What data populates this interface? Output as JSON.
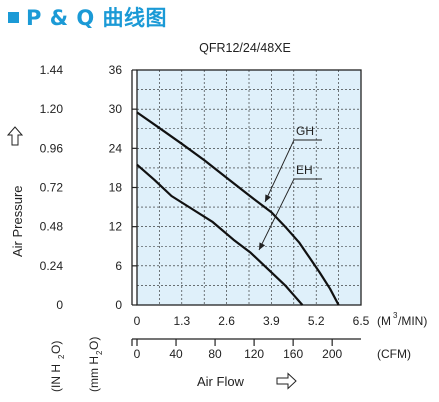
{
  "header": {
    "title": "P & Q 曲线图",
    "accent_color": "#1b9ad6"
  },
  "chart_data": {
    "type": "line",
    "title": "QFR12/24/48XE",
    "plot_background": "#dff0fa",
    "grid": true,
    "y_axis_left": {
      "label": "Air Pressure",
      "unit": "(IN H2O)",
      "ticks": [
        "1.44",
        "1.20",
        "0.96",
        "0.72",
        "0.48",
        "0.24",
        "0"
      ],
      "range": [
        0,
        1.44
      ]
    },
    "y_axis_right": {
      "unit": "(mm H2O)",
      "ticks": [
        "36",
        "30",
        "24",
        "18",
        "12",
        "6",
        "0"
      ],
      "range": [
        0,
        36
      ]
    },
    "x_axis_top": {
      "unit": "(M3/MIN)",
      "ticks": [
        "0",
        "1.3",
        "2.6",
        "3.9",
        "5.2",
        "6.5"
      ],
      "range": [
        0,
        6.5
      ]
    },
    "x_axis_bottom": {
      "unit": "(CFM)",
      "ticks": [
        "0",
        "40",
        "80",
        "120",
        "160",
        "200"
      ]
    },
    "x_label": "Air Flow",
    "series": [
      {
        "name": "GH",
        "x_unit": "M3/MIN",
        "y_unit": "mm H2O",
        "x": [
          0,
          0.6,
          1.3,
          1.95,
          2.6,
          3.25,
          3.9,
          4.3,
          4.7,
          5.0,
          5.3,
          5.6,
          5.85
        ],
        "y": [
          29.5,
          27.3,
          24.7,
          22.2,
          19.5,
          16.8,
          14.2,
          12.0,
          9.6,
          7.3,
          5.0,
          2.5,
          0
        ]
      },
      {
        "name": "EH",
        "x_unit": "M3/MIN",
        "y_unit": "mm H2O",
        "x": [
          0,
          0.5,
          1.0,
          1.6,
          2.2,
          2.8,
          3.3,
          3.7,
          4.0,
          4.3,
          4.55,
          4.8
        ],
        "y": [
          21.5,
          19.2,
          16.7,
          14.7,
          12.7,
          10.0,
          8.0,
          6.0,
          4.5,
          3.0,
          1.5,
          0
        ]
      }
    ]
  }
}
